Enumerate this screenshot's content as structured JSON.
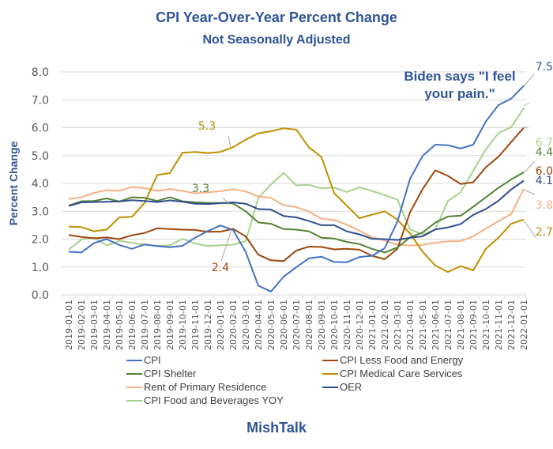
{
  "chart_data": {
    "type": "line",
    "title": "CPI Year-Over-Year Percent Change",
    "subtitle": "Not Seasonally Adjusted",
    "xlabel": "",
    "ylabel": "Percent Change",
    "ylim": [
      0,
      8
    ],
    "yticks": [
      "0.0",
      "1.0",
      "2.0",
      "3.0",
      "4.0",
      "5.0",
      "6.0",
      "7.0",
      "8.0"
    ],
    "grid": true,
    "legend_position": "bottom",
    "watermark": "MishTalk",
    "annotation": {
      "line1": "Biden says \"I feel",
      "line2": "your pain.\""
    },
    "x": [
      "2019-01-01",
      "2019-02-01",
      "2019-03-01",
      "2019-04-01",
      "2019-05-01",
      "2019-06-01",
      "2019-07-01",
      "2019-08-01",
      "2019-09-01",
      "2019-10-01",
      "2019-11-01",
      "2019-12-01",
      "2020-01-01",
      "2020-02-01",
      "2020-03-01",
      "2020-04-01",
      "2020-05-01",
      "2020-06-01",
      "2020-07-01",
      "2020-08-01",
      "2020-09-01",
      "2020-10-01",
      "2020-11-01",
      "2020-12-01",
      "2021-01-01",
      "2021-02-01",
      "2021-03-01",
      "2021-04-01",
      "2021-05-01",
      "2021-06-01",
      "2021-07-01",
      "2021-08-01",
      "2021-09-01",
      "2021-10-01",
      "2021-11-01",
      "2021-12-01",
      "2022-01-01"
    ],
    "series": [
      {
        "name": "CPI",
        "color": "#4472C4",
        "values": [
          1.55,
          1.52,
          1.86,
          2.0,
          1.79,
          1.65,
          1.81,
          1.75,
          1.71,
          1.76,
          2.05,
          2.29,
          2.49,
          2.33,
          1.54,
          0.33,
          0.12,
          0.65,
          0.99,
          1.31,
          1.37,
          1.18,
          1.17,
          1.36,
          1.4,
          1.68,
          2.62,
          4.16,
          4.99,
          5.39,
          5.37,
          5.25,
          5.39,
          6.22,
          6.81,
          7.04,
          7.5
        ]
      },
      {
        "name": "CPI Less Food and Energy",
        "color": "#9E480E",
        "values": [
          2.15,
          2.08,
          2.03,
          2.06,
          2.0,
          2.14,
          2.22,
          2.39,
          2.36,
          2.34,
          2.33,
          2.26,
          2.27,
          2.37,
          2.1,
          1.44,
          1.24,
          1.21,
          1.59,
          1.73,
          1.72,
          1.63,
          1.65,
          1.62,
          1.4,
          1.28,
          1.65,
          2.96,
          3.8,
          4.47,
          4.27,
          3.98,
          4.04,
          4.58,
          4.96,
          5.48,
          6.0
        ]
      },
      {
        "name": "CPI Shelter",
        "color": "#548235",
        "values": [
          3.2,
          3.36,
          3.37,
          3.46,
          3.35,
          3.5,
          3.48,
          3.37,
          3.5,
          3.36,
          3.32,
          3.3,
          3.3,
          3.28,
          3.0,
          2.6,
          2.55,
          2.36,
          2.34,
          2.28,
          2.05,
          2.02,
          1.9,
          1.82,
          1.65,
          1.52,
          1.7,
          2.06,
          2.24,
          2.59,
          2.81,
          2.84,
          3.16,
          3.5,
          3.84,
          4.14,
          4.4
        ]
      },
      {
        "name": "CPI Medical Care Services",
        "color": "#BF9000",
        "values": [
          2.45,
          2.43,
          2.28,
          2.34,
          2.78,
          2.8,
          3.3,
          4.3,
          4.37,
          5.1,
          5.13,
          5.09,
          5.13,
          5.3,
          5.57,
          5.8,
          5.87,
          5.98,
          5.93,
          5.3,
          4.94,
          3.65,
          3.2,
          2.75,
          2.88,
          3.0,
          2.7,
          2.2,
          1.55,
          1.05,
          0.82,
          1.03,
          0.88,
          1.65,
          2.05,
          2.55,
          2.7
        ]
      },
      {
        "name": "Rent of Primary Residence",
        "color": "#F4B183",
        "values": [
          3.44,
          3.5,
          3.66,
          3.76,
          3.73,
          3.87,
          3.83,
          3.73,
          3.8,
          3.73,
          3.64,
          3.68,
          3.72,
          3.79,
          3.71,
          3.53,
          3.48,
          3.22,
          3.15,
          2.99,
          2.73,
          2.69,
          2.52,
          2.3,
          2.07,
          1.95,
          1.8,
          1.77,
          1.8,
          1.87,
          1.92,
          1.93,
          2.1,
          2.38,
          2.64,
          2.9,
          3.8
        ]
      },
      {
        "name": "OER",
        "color": "#2F4F8F",
        "values": [
          3.19,
          3.32,
          3.33,
          3.34,
          3.35,
          3.4,
          3.37,
          3.33,
          3.39,
          3.34,
          3.27,
          3.26,
          3.29,
          3.32,
          3.27,
          3.08,
          3.06,
          2.83,
          2.78,
          2.65,
          2.5,
          2.5,
          2.28,
          2.17,
          2.01,
          2.0,
          1.97,
          2.05,
          2.1,
          2.35,
          2.42,
          2.54,
          2.87,
          3.08,
          3.38,
          3.78,
          4.1
        ]
      },
      {
        "name": "CPI Food and Beverages YOY",
        "color": "#A9D18E",
        "values": [
          1.63,
          1.98,
          2.06,
          1.77,
          1.94,
          1.87,
          1.8,
          1.75,
          1.78,
          2.01,
          1.84,
          1.75,
          1.78,
          1.8,
          1.93,
          3.48,
          3.96,
          4.38,
          3.93,
          3.95,
          3.82,
          3.85,
          3.69,
          3.86,
          3.73,
          3.58,
          3.42,
          2.35,
          2.17,
          2.35,
          3.37,
          3.68,
          4.45,
          5.22,
          5.81,
          6.02,
          6.7
        ]
      }
    ],
    "data_labels": [
      {
        "series": "CPI",
        "text": "7.5"
      },
      {
        "series": "CPI Food and Beverages YOY",
        "text": "6.7"
      },
      {
        "series": "CPI Less Food and Energy",
        "text": "6.0"
      },
      {
        "series": "CPI Shelter",
        "text": "4.4"
      },
      {
        "series": "OER",
        "text": "4.1"
      },
      {
        "series": "Rent of Primary Residence",
        "text": "3.8"
      },
      {
        "series": "CPI Medical Care Services",
        "text": "2.7"
      },
      {
        "series": "CPI Medical Care Services",
        "text": "5.3"
      },
      {
        "series": "CPI Shelter",
        "text": "3.3"
      },
      {
        "series": "CPI Less Food and Energy",
        "text": "2.4"
      }
    ]
  }
}
